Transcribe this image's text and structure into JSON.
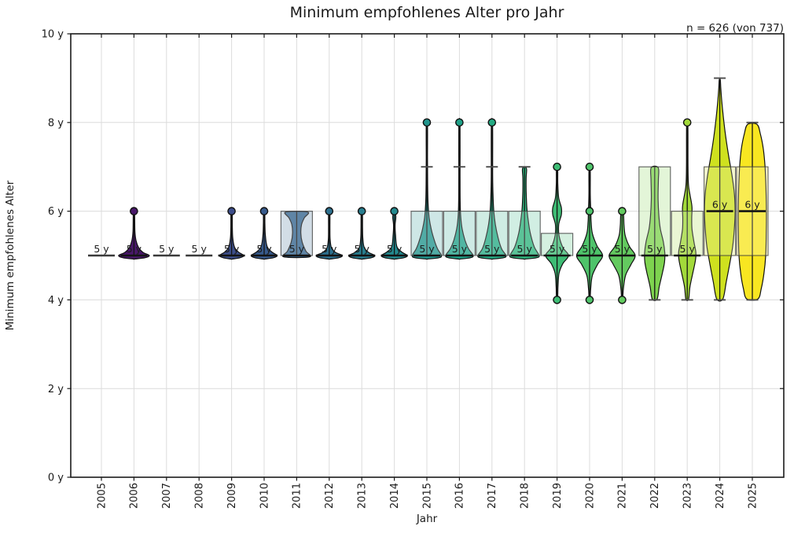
{
  "chart_data": {
    "type": "violin",
    "title": "Minimum empfohlenes Alter pro Jahr",
    "annotation": "n = 626 (von 737)",
    "xlabel": "Jahr",
    "ylabel": "Minimum empfohlenes Alter",
    "ylim": [
      0,
      10
    ],
    "yticks": [
      {
        "value": 0,
        "label": "0 y"
      },
      {
        "value": 2,
        "label": "2 y"
      },
      {
        "value": 4,
        "label": "4 y"
      },
      {
        "value": 6,
        "label": "6 y"
      },
      {
        "value": 8,
        "label": "8 y"
      },
      {
        "value": 10,
        "label": "10 y"
      }
    ],
    "grid_y": [
      2,
      4,
      6,
      8
    ],
    "grid_color": "#dcdcdc",
    "categories": [
      "2005",
      "2006",
      "2007",
      "2008",
      "2009",
      "2010",
      "2011",
      "2012",
      "2013",
      "2014",
      "2015",
      "2016",
      "2017",
      "2018",
      "2019",
      "2020",
      "2021",
      "2022",
      "2023",
      "2024",
      "2025"
    ],
    "violins": [
      {
        "year": "2005",
        "color": "#440154",
        "median": 5,
        "label": "5 y",
        "label_color": "#b5b5b5",
        "flat": true
      },
      {
        "year": "2006",
        "color": "#481769",
        "median": 5,
        "label": "5 y",
        "label_color": "#f2f2f2",
        "profile": [
          [
            4.92,
            0.04
          ],
          [
            4.95,
            0.72
          ],
          [
            5.0,
            1.0
          ],
          [
            5.07,
            0.6
          ],
          [
            5.18,
            0.3
          ],
          [
            5.35,
            0.13
          ],
          [
            5.55,
            0.06
          ],
          [
            5.95,
            0.04
          ]
        ],
        "vline": [
          5,
          6
        ],
        "outliers": [
          6
        ]
      },
      {
        "year": "2007",
        "color": "#472a7a",
        "median": 5,
        "label": "5 y",
        "label_color": "#b5b5b5",
        "flat": true
      },
      {
        "year": "2008",
        "color": "#433d84",
        "median": 5,
        "label": "5 y",
        "label_color": "#b5b5b5",
        "flat": true
      },
      {
        "year": "2009",
        "color": "#3d4e8a",
        "median": 5,
        "label": "5 y",
        "label_color": "#f2f2f2",
        "profile": [
          [
            4.92,
            0.04
          ],
          [
            4.95,
            0.55
          ],
          [
            5.0,
            0.8
          ],
          [
            5.07,
            0.48
          ],
          [
            5.18,
            0.2
          ],
          [
            5.38,
            0.08
          ],
          [
            5.6,
            0.05
          ],
          [
            5.95,
            0.04
          ]
        ],
        "vline": [
          5,
          6
        ],
        "outliers": [
          6
        ]
      },
      {
        "year": "2010",
        "color": "#375a8c",
        "median": 5,
        "label": "5 y",
        "label_color": "#f2f2f2",
        "profile": [
          [
            4.92,
            0.04
          ],
          [
            4.95,
            0.6
          ],
          [
            5.0,
            0.85
          ],
          [
            5.08,
            0.5
          ],
          [
            5.2,
            0.2
          ],
          [
            5.45,
            0.08
          ],
          [
            5.7,
            0.05
          ],
          [
            5.95,
            0.04
          ]
        ],
        "vline": [
          5,
          6
        ],
        "outliers": [
          6
        ]
      },
      {
        "year": "2011",
        "color": "#33638d",
        "median": 5,
        "label": "5 y",
        "label_color": "#f2f2f2",
        "profile": [
          [
            4.97,
            0.84
          ],
          [
            5.1,
            0.6
          ],
          [
            5.3,
            0.36
          ],
          [
            5.5,
            0.27
          ],
          [
            5.7,
            0.32
          ],
          [
            5.85,
            0.5
          ],
          [
            5.98,
            0.72
          ]
        ],
        "box": [
          5,
          6
        ],
        "vline": [
          5,
          6
        ]
      },
      {
        "year": "2012",
        "color": "#2d708e",
        "median": 5,
        "label": "5 y",
        "label_color": "#f2f2f2",
        "profile": [
          [
            4.92,
            0.04
          ],
          [
            4.95,
            0.62
          ],
          [
            5.0,
            0.85
          ],
          [
            5.07,
            0.42
          ],
          [
            5.17,
            0.15
          ],
          [
            5.35,
            0.06
          ],
          [
            5.6,
            0.045
          ],
          [
            5.95,
            0.04
          ]
        ],
        "vline": [
          5,
          6
        ],
        "outliers": [
          6
        ]
      },
      {
        "year": "2013",
        "color": "#287d8e",
        "median": 5,
        "label": "5 y",
        "label_color": "#f2f2f2",
        "profile": [
          [
            4.92,
            0.04
          ],
          [
            4.95,
            0.62
          ],
          [
            5.0,
            0.85
          ],
          [
            5.07,
            0.45
          ],
          [
            5.18,
            0.16
          ],
          [
            5.38,
            0.07
          ],
          [
            5.62,
            0.05
          ],
          [
            5.95,
            0.04
          ]
        ],
        "vline": [
          5,
          6
        ],
        "outliers": [
          6
        ]
      },
      {
        "year": "2014",
        "color": "#23898e",
        "median": 5,
        "label": "5 y",
        "label_color": "#f2f2f2",
        "profile": [
          [
            4.92,
            0.04
          ],
          [
            4.95,
            0.62
          ],
          [
            5.0,
            0.85
          ],
          [
            5.08,
            0.48
          ],
          [
            5.2,
            0.17
          ],
          [
            5.45,
            0.08
          ],
          [
            5.68,
            0.05
          ],
          [
            5.85,
            0.1
          ],
          [
            5.94,
            0.07
          ]
        ],
        "vline": [
          5,
          6
        ],
        "outliers": [
          6
        ]
      },
      {
        "year": "2015",
        "color": "#21948c",
        "median": 5,
        "label": "5 y",
        "label_color": "#f2f2f2",
        "profile": [
          [
            4.92,
            0.04
          ],
          [
            4.95,
            0.78
          ],
          [
            5.0,
            0.95
          ],
          [
            5.15,
            0.7
          ],
          [
            5.35,
            0.48
          ],
          [
            5.6,
            0.28
          ],
          [
            5.85,
            0.15
          ],
          [
            6.15,
            0.08
          ],
          [
            6.6,
            0.05
          ],
          [
            7.2,
            0.042
          ],
          [
            7.95,
            0.04
          ]
        ],
        "box": [
          5,
          6
        ],
        "vline": [
          5,
          8
        ],
        "caps": [
          7
        ],
        "outliers": [
          8
        ]
      },
      {
        "year": "2016",
        "color": "#1fa188",
        "median": 5,
        "label": "5 y",
        "label_color": "#f2f2f2",
        "profile": [
          [
            4.92,
            0.04
          ],
          [
            4.95,
            0.72
          ],
          [
            5.0,
            0.9
          ],
          [
            5.15,
            0.6
          ],
          [
            5.35,
            0.36
          ],
          [
            5.6,
            0.18
          ],
          [
            5.85,
            0.09
          ],
          [
            6.2,
            0.05
          ],
          [
            6.8,
            0.042
          ],
          [
            7.95,
            0.04
          ]
        ],
        "box": [
          5,
          6
        ],
        "vline": [
          5,
          8
        ],
        "caps": [
          7
        ],
        "outliers": [
          8
        ]
      },
      {
        "year": "2017",
        "color": "#24aa83",
        "median": 5,
        "label": "5 y",
        "label_color": "#f2f2f2",
        "profile": [
          [
            4.92,
            0.04
          ],
          [
            4.95,
            0.75
          ],
          [
            5.0,
            0.92
          ],
          [
            5.15,
            0.63
          ],
          [
            5.4,
            0.4
          ],
          [
            5.7,
            0.22
          ],
          [
            6.0,
            0.12
          ],
          [
            6.35,
            0.07
          ],
          [
            6.8,
            0.045
          ],
          [
            7.95,
            0.04
          ]
        ],
        "box": [
          5,
          6
        ],
        "vline": [
          5,
          8
        ],
        "caps": [
          7
        ],
        "outliers": [
          8
        ]
      },
      {
        "year": "2018",
        "color": "#2eb37c",
        "median": 5,
        "label": "5 y",
        "label_color": "#f2f2f2",
        "profile": [
          [
            4.92,
            0.04
          ],
          [
            4.95,
            0.78
          ],
          [
            5.0,
            0.95
          ],
          [
            5.2,
            0.63
          ],
          [
            5.5,
            0.38
          ],
          [
            5.8,
            0.24
          ],
          [
            6.1,
            0.15
          ],
          [
            6.45,
            0.11
          ],
          [
            6.75,
            0.11
          ],
          [
            6.93,
            0.14
          ],
          [
            6.99,
            0.08
          ]
        ],
        "box": [
          5,
          6
        ],
        "vline": [
          5,
          7
        ],
        "caps": [
          7
        ]
      },
      {
        "year": "2019",
        "color": "#3dbc74",
        "median": 5,
        "label": "5 y",
        "label_color": "#1a1a1a",
        "profile": [
          [
            4.08,
            0.04
          ],
          [
            4.3,
            0.06
          ],
          [
            4.6,
            0.13
          ],
          [
            4.82,
            0.38
          ],
          [
            5.0,
            0.75
          ],
          [
            5.18,
            0.38
          ],
          [
            5.45,
            0.13
          ],
          [
            5.7,
            0.11
          ],
          [
            5.92,
            0.28
          ],
          [
            6.08,
            0.28
          ],
          [
            6.3,
            0.11
          ],
          [
            6.6,
            0.05
          ],
          [
            6.92,
            0.04
          ]
        ],
        "box": [
          5,
          5.5
        ],
        "vline": [
          4,
          7
        ],
        "outliers": [
          7,
          4
        ]
      },
      {
        "year": "2020",
        "color": "#4ec36a",
        "median": 5,
        "label": "5 y",
        "label_color": "#1a1a1a",
        "profile": [
          [
            4.08,
            0.04
          ],
          [
            4.25,
            0.07
          ],
          [
            4.55,
            0.18
          ],
          [
            4.8,
            0.52
          ],
          [
            5.0,
            0.85
          ],
          [
            5.22,
            0.48
          ],
          [
            5.5,
            0.18
          ],
          [
            5.75,
            0.1
          ],
          [
            5.98,
            0.08
          ],
          [
            6.35,
            0.045
          ],
          [
            6.92,
            0.04
          ]
        ],
        "vline": [
          4,
          7
        ],
        "outliers": [
          7,
          6,
          4
        ]
      },
      {
        "year": "2021",
        "color": "#63ca5f",
        "median": 5,
        "label": "5 y",
        "label_color": "#1a1a1a",
        "profile": [
          [
            4.08,
            0.04
          ],
          [
            4.25,
            0.08
          ],
          [
            4.55,
            0.22
          ],
          [
            4.8,
            0.58
          ],
          [
            5.0,
            0.85
          ],
          [
            5.2,
            0.48
          ],
          [
            5.45,
            0.2
          ],
          [
            5.7,
            0.12
          ],
          [
            5.94,
            0.08
          ]
        ],
        "vline": [
          4,
          6
        ],
        "outliers": [
          6,
          4
        ]
      },
      {
        "year": "2022",
        "color": "#7ed34f",
        "median": 5,
        "label": "5 y",
        "label_color": "#1a1a1a",
        "profile": [
          [
            4.02,
            0.16
          ],
          [
            4.3,
            0.3
          ],
          [
            4.6,
            0.5
          ],
          [
            4.85,
            0.64
          ],
          [
            5.05,
            0.66
          ],
          [
            5.3,
            0.57
          ],
          [
            5.6,
            0.37
          ],
          [
            5.9,
            0.27
          ],
          [
            6.3,
            0.22
          ],
          [
            6.7,
            0.24
          ],
          [
            6.98,
            0.23
          ]
        ],
        "box": [
          5,
          7
        ],
        "vline": [
          4,
          7
        ],
        "caps": [
          4
        ]
      },
      {
        "year": "2023",
        "color": "#a2d93a",
        "median": 5,
        "label": "5 y",
        "label_color": "#1a1a1a",
        "profile": [
          [
            4.02,
            0.09
          ],
          [
            4.3,
            0.18
          ],
          [
            4.6,
            0.36
          ],
          [
            4.9,
            0.54
          ],
          [
            5.08,
            0.56
          ],
          [
            5.3,
            0.44
          ],
          [
            5.6,
            0.31
          ],
          [
            5.85,
            0.29
          ],
          [
            6.1,
            0.31
          ],
          [
            6.35,
            0.19
          ],
          [
            6.6,
            0.08
          ],
          [
            7.0,
            0.05
          ],
          [
            7.95,
            0.04
          ]
        ],
        "box": [
          5,
          6
        ],
        "vline": [
          4,
          8
        ],
        "caps": [
          4
        ],
        "outliers": [
          8
        ]
      },
      {
        "year": "2024",
        "color": "#cfe11f",
        "median": 6,
        "label": "6 y",
        "label_color": "#1a1a1a",
        "profile": [
          [
            4.02,
            0.2
          ],
          [
            4.4,
            0.42
          ],
          [
            4.8,
            0.64
          ],
          [
            5.2,
            0.84
          ],
          [
            5.6,
            0.95
          ],
          [
            6.0,
            1.0
          ],
          [
            6.4,
            0.95
          ],
          [
            6.8,
            0.8
          ],
          [
            7.2,
            0.6
          ],
          [
            7.7,
            0.38
          ],
          [
            8.3,
            0.18
          ],
          [
            8.75,
            0.07
          ],
          [
            8.96,
            0.035
          ]
        ],
        "box": [
          5,
          7
        ],
        "vline": [
          4,
          9
        ],
        "caps": [
          4,
          9
        ]
      },
      {
        "year": "2025",
        "color": "#f8e621",
        "median": 6,
        "label": "6 y",
        "label_color": "#1a1a1a",
        "profile": [
          [
            4.02,
            0.36
          ],
          [
            4.25,
            0.58
          ],
          [
            4.6,
            0.76
          ],
          [
            5.0,
            0.87
          ],
          [
            5.5,
            0.91
          ],
          [
            6.0,
            0.92
          ],
          [
            6.5,
            0.89
          ],
          [
            7.0,
            0.83
          ],
          [
            7.4,
            0.72
          ],
          [
            7.75,
            0.52
          ],
          [
            7.96,
            0.3
          ]
        ],
        "box": [
          5,
          7
        ],
        "vline": [
          4,
          8
        ],
        "caps": [
          4,
          8
        ]
      }
    ]
  }
}
